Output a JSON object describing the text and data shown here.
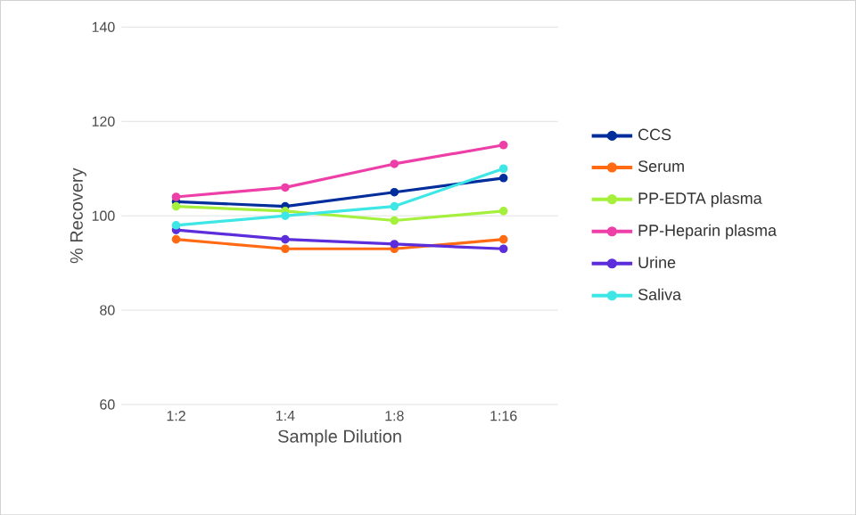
{
  "chart_data": {
    "type": "line",
    "xlabel": "Sample Dilution",
    "ylabel": "% Recovery",
    "categories": [
      "1:2",
      "1:4",
      "1:8",
      "1:16"
    ],
    "series": [
      {
        "name": "CCS",
        "color": "#002d9c",
        "values": [
          103,
          102,
          105,
          108
        ]
      },
      {
        "name": "Serum",
        "color": "#ff6a13",
        "values": [
          95,
          93,
          93,
          95
        ]
      },
      {
        "name": "PP-EDTA plasma",
        "color": "#a5f03c",
        "values": [
          102,
          101,
          99,
          101
        ]
      },
      {
        "name": "PP-Heparin plasma",
        "color": "#ee3fa8",
        "values": [
          104,
          106,
          111,
          115
        ]
      },
      {
        "name": "Urine",
        "color": "#5b2ddb",
        "values": [
          97,
          95,
          94,
          93
        ]
      },
      {
        "name": "Saliva",
        "color": "#3fe6e6",
        "values": [
          98,
          100,
          102,
          110
        ]
      }
    ],
    "ylim": [
      60,
      140
    ],
    "yticks": [
      60,
      80,
      100,
      120,
      140
    ],
    "grid": "y",
    "legend": "right",
    "marker": "circle",
    "line_style": "solid"
  }
}
